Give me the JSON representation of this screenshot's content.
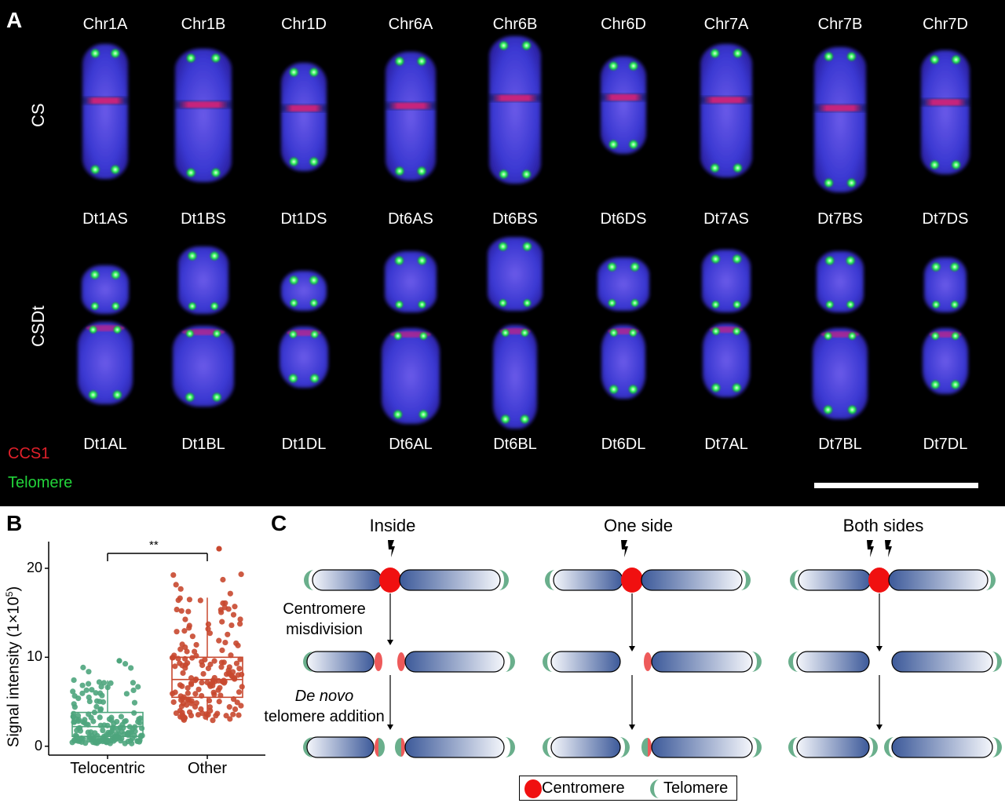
{
  "panel_a": {
    "letter": "A",
    "row_cs_label": "CS",
    "row_csdt_label": "CSDt",
    "chromosomes": [
      "Chr1A",
      "Chr1B",
      "Chr1D",
      "Chr6A",
      "Chr6B",
      "Chr6D",
      "Chr7A",
      "Chr7B",
      "Chr7D"
    ],
    "ditelo_short": [
      "Dt1AS",
      "Dt1BS",
      "Dt1DS",
      "Dt6AS",
      "Dt6BS",
      "Dt6DS",
      "Dt7AS",
      "Dt7BS",
      "Dt7DS"
    ],
    "ditelo_long": [
      "Dt1AL",
      "Dt1BL",
      "Dt1DL",
      "Dt6AL",
      "Dt6BL",
      "Dt6DL",
      "Dt7AL",
      "Dt7BL",
      "Dt7DL"
    ],
    "legend": {
      "ccs1": "CCS1",
      "telomere": "Telomere"
    },
    "colors": {
      "ccs1": "#e0202a",
      "telomere": "#22d33a",
      "dna": "#3b3bd8"
    }
  },
  "panel_b": {
    "letter": "B",
    "significance": "**",
    "ylabel_main": "Signal intensity (1×10",
    "ylabel_exp": "5",
    "ylabel_close": ")"
  },
  "chart_data": {
    "type": "box",
    "categories": [
      "Telocentric",
      "Other"
    ],
    "ylabel": "Signal intensity (1×10⁵)",
    "yticks": [
      0,
      10,
      20
    ],
    "ylim": [
      -1,
      23
    ],
    "series": [
      {
        "name": "Telocentric",
        "color": "#4ea57d",
        "q1": 1.1,
        "median": 2.2,
        "q3": 3.8,
        "whisker_low": 0.3,
        "whisker_high": 7.4,
        "max": 9.6
      },
      {
        "name": "Other",
        "color": "#c8482f",
        "q1": 5.5,
        "median": 7.5,
        "q3": 10.0,
        "whisker_low": 2.9,
        "whisker_high": 16.7,
        "max": 22.2
      }
    ]
  },
  "panel_c": {
    "letter": "C",
    "columns": [
      "Inside",
      "One side",
      "Both sides"
    ],
    "step1": [
      "Centromere",
      "misdivision"
    ],
    "step2_italic": "De novo",
    "step2_rest": "telomere addition",
    "legend": {
      "centromere": "Centromere",
      "telomere": "Telomere"
    },
    "colors": {
      "centromere": "#f01010",
      "telomere": "#6aaf8c",
      "arm_dark": "#3d5a9a",
      "arm_light": "#f4f6fb"
    }
  }
}
